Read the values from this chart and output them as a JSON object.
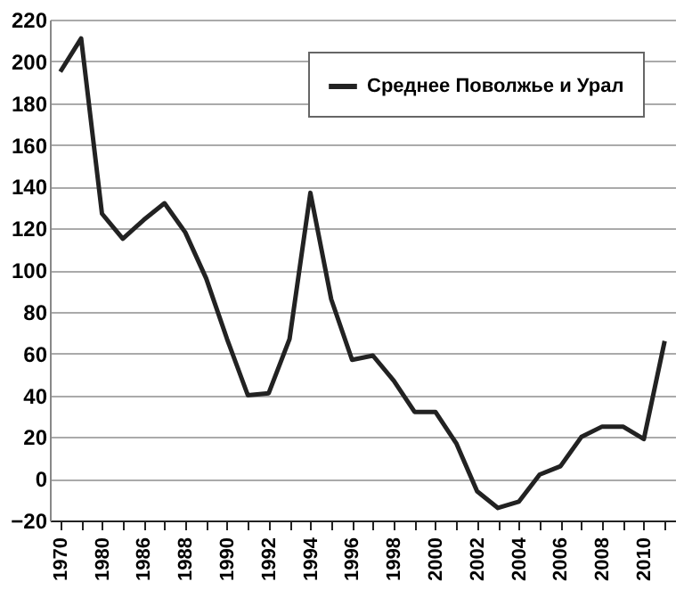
{
  "chart_data": {
    "type": "line",
    "categories": [
      "1970",
      null,
      "1980",
      null,
      "1986",
      null,
      "1988",
      null,
      "1990",
      null,
      "1992",
      null,
      "1994",
      null,
      "1996",
      null,
      "1998",
      null,
      "2000",
      null,
      "2002",
      null,
      "2004",
      null,
      "2006",
      null,
      "2008",
      null,
      "2010",
      null
    ],
    "series": [
      {
        "name": "Среднее Поволжье и Урал",
        "color": "#222222",
        "values": [
          195,
          211,
          127,
          115,
          124,
          132,
          118,
          96,
          67,
          40,
          41,
          67,
          137,
          86,
          57,
          59,
          47,
          32,
          32,
          17,
          -6,
          -14,
          -11,
          2,
          6,
          20,
          25,
          25,
          19,
          66
        ]
      }
    ],
    "ylim": [
      -20,
      220
    ],
    "yticks": [
      -20,
      0,
      20,
      40,
      60,
      80,
      100,
      120,
      140,
      160,
      180,
      200,
      220
    ],
    "grid": "y",
    "legend": "top right",
    "marker": "none",
    "line_style": "solid"
  }
}
